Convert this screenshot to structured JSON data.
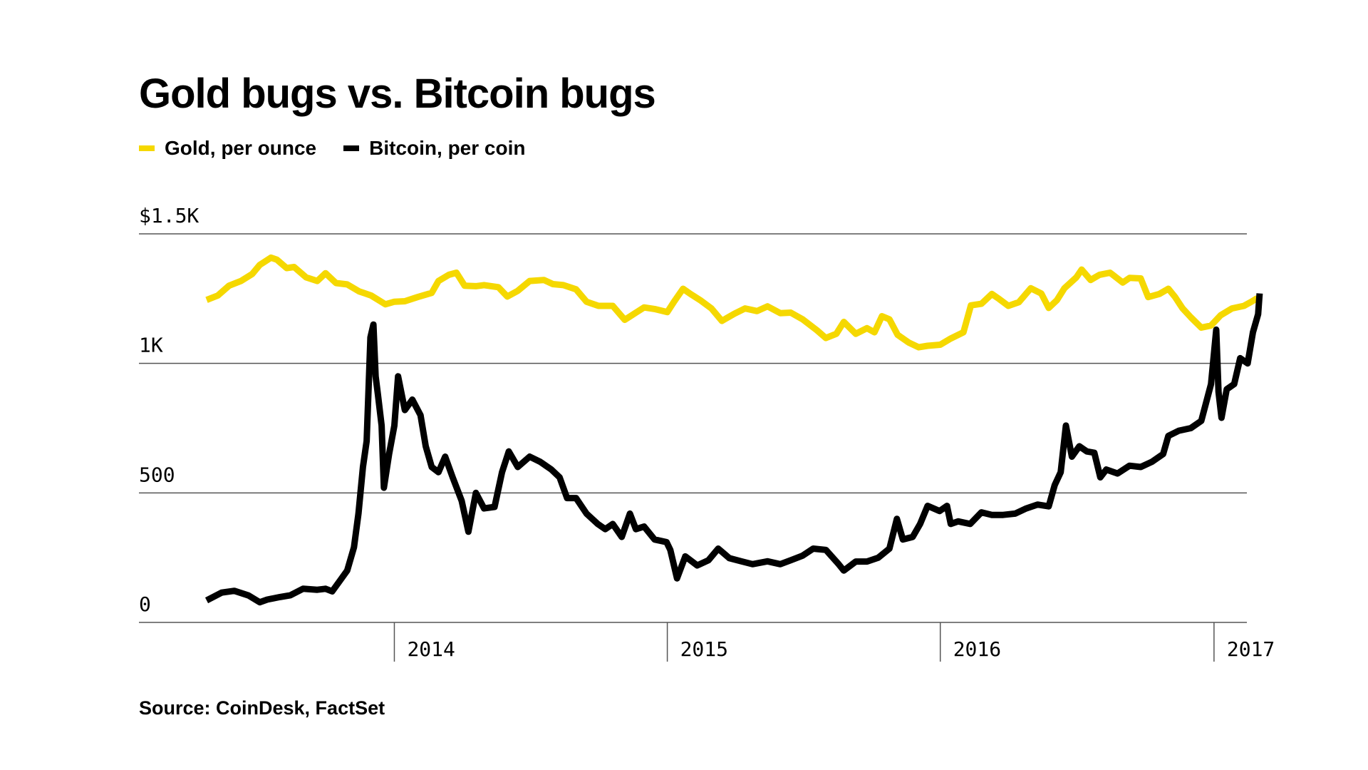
{
  "title": "Gold bugs vs. Bitcoin bugs",
  "legend": [
    {
      "label": "Gold, per ounce",
      "color": "#f5d800"
    },
    {
      "label": "Bitcoin, per coin",
      "color": "#000000"
    }
  ],
  "source": "Source: CoinDesk, FactSet",
  "chart_data": {
    "type": "line",
    "title": "Gold bugs vs. Bitcoin bugs",
    "xlabel": "",
    "ylabel": "",
    "ylim": [
      0,
      1500
    ],
    "xlim": [
      "2013-04-25",
      "2017-03-05"
    ],
    "y_ticks": [
      {
        "value": 0,
        "label": "0"
      },
      {
        "value": 500,
        "label": "500"
      },
      {
        "value": 1000,
        "label": "1K"
      },
      {
        "value": 1500,
        "label": "$1.5K"
      }
    ],
    "x_ticks": [
      {
        "value": "2014-01-01",
        "label": "2014"
      },
      {
        "value": "2015-01-01",
        "label": "2015"
      },
      {
        "value": "2016-01-01",
        "label": "2016"
      },
      {
        "value": "2017-01-01",
        "label": "2017"
      }
    ],
    "grid": true,
    "legend_position": "top-left",
    "series": [
      {
        "name": "Gold, per ounce",
        "color": "#f5d800",
        "points": [
          [
            "2013-04-25",
            1245
          ],
          [
            "2013-05-10",
            1262
          ],
          [
            "2013-05-25",
            1300
          ],
          [
            "2013-06-10",
            1318
          ],
          [
            "2013-06-25",
            1345
          ],
          [
            "2013-07-05",
            1380
          ],
          [
            "2013-07-20",
            1408
          ],
          [
            "2013-07-28",
            1400
          ],
          [
            "2013-08-10",
            1368
          ],
          [
            "2013-08-20",
            1372
          ],
          [
            "2013-09-05",
            1332
          ],
          [
            "2013-09-20",
            1318
          ],
          [
            "2013-10-01",
            1348
          ],
          [
            "2013-10-15",
            1310
          ],
          [
            "2013-10-30",
            1305
          ],
          [
            "2013-11-15",
            1278
          ],
          [
            "2013-12-01",
            1262
          ],
          [
            "2013-12-20",
            1228
          ],
          [
            "2014-01-01",
            1238
          ],
          [
            "2014-01-15",
            1240
          ],
          [
            "2014-02-01",
            1256
          ],
          [
            "2014-02-20",
            1272
          ],
          [
            "2014-03-01",
            1318
          ],
          [
            "2014-03-15",
            1342
          ],
          [
            "2014-03-25",
            1350
          ],
          [
            "2014-04-05",
            1300
          ],
          [
            "2014-04-20",
            1298
          ],
          [
            "2014-05-01",
            1302
          ],
          [
            "2014-05-20",
            1294
          ],
          [
            "2014-06-01",
            1258
          ],
          [
            "2014-06-15",
            1280
          ],
          [
            "2014-07-01",
            1318
          ],
          [
            "2014-07-20",
            1322
          ],
          [
            "2014-08-01",
            1306
          ],
          [
            "2014-08-15",
            1302
          ],
          [
            "2014-09-01",
            1286
          ],
          [
            "2014-09-15",
            1238
          ],
          [
            "2014-10-01",
            1222
          ],
          [
            "2014-10-20",
            1222
          ],
          [
            "2014-11-05",
            1168
          ],
          [
            "2014-11-20",
            1196
          ],
          [
            "2014-12-01",
            1216
          ],
          [
            "2014-12-15",
            1210
          ],
          [
            "2015-01-01",
            1198
          ],
          [
            "2015-01-10",
            1238
          ],
          [
            "2015-01-22",
            1288
          ],
          [
            "2015-02-01",
            1268
          ],
          [
            "2015-02-15",
            1242
          ],
          [
            "2015-03-01",
            1212
          ],
          [
            "2015-03-15",
            1164
          ],
          [
            "2015-04-01",
            1192
          ],
          [
            "2015-04-15",
            1212
          ],
          [
            "2015-05-01",
            1202
          ],
          [
            "2015-05-15",
            1220
          ],
          [
            "2015-06-01",
            1194
          ],
          [
            "2015-06-15",
            1196
          ],
          [
            "2015-07-01",
            1170
          ],
          [
            "2015-07-20",
            1128
          ],
          [
            "2015-08-01",
            1098
          ],
          [
            "2015-08-15",
            1114
          ],
          [
            "2015-08-25",
            1160
          ],
          [
            "2015-09-10",
            1114
          ],
          [
            "2015-09-25",
            1136
          ],
          [
            "2015-10-05",
            1120
          ],
          [
            "2015-10-15",
            1182
          ],
          [
            "2015-10-25",
            1170
          ],
          [
            "2015-11-05",
            1110
          ],
          [
            "2015-11-20",
            1080
          ],
          [
            "2015-12-03",
            1062
          ],
          [
            "2015-12-15",
            1068
          ],
          [
            "2016-01-01",
            1072
          ],
          [
            "2016-01-15",
            1096
          ],
          [
            "2016-02-01",
            1120
          ],
          [
            "2016-02-11",
            1224
          ],
          [
            "2016-02-25",
            1230
          ],
          [
            "2016-03-10",
            1268
          ],
          [
            "2016-03-20",
            1248
          ],
          [
            "2016-04-01",
            1222
          ],
          [
            "2016-04-15",
            1236
          ],
          [
            "2016-05-01",
            1290
          ],
          [
            "2016-05-15",
            1270
          ],
          [
            "2016-05-25",
            1214
          ],
          [
            "2016-06-05",
            1244
          ],
          [
            "2016-06-15",
            1290
          ],
          [
            "2016-07-01",
            1332
          ],
          [
            "2016-07-08",
            1362
          ],
          [
            "2016-07-20",
            1322
          ],
          [
            "2016-08-01",
            1342
          ],
          [
            "2016-08-15",
            1350
          ],
          [
            "2016-09-01",
            1312
          ],
          [
            "2016-09-10",
            1330
          ],
          [
            "2016-09-25",
            1328
          ],
          [
            "2016-10-05",
            1256
          ],
          [
            "2016-10-20",
            1268
          ],
          [
            "2016-11-01",
            1288
          ],
          [
            "2016-11-10",
            1256
          ],
          [
            "2016-11-20",
            1212
          ],
          [
            "2016-12-01",
            1178
          ],
          [
            "2016-12-15",
            1138
          ],
          [
            "2016-12-28",
            1146
          ],
          [
            "2017-01-10",
            1186
          ],
          [
            "2017-01-25",
            1212
          ],
          [
            "2017-02-10",
            1222
          ],
          [
            "2017-02-20",
            1238
          ],
          [
            "2017-02-28",
            1252
          ]
        ]
      },
      {
        "name": "Bitcoin, per coin",
        "color": "#000000",
        "points": [
          [
            "2013-04-25",
            85
          ],
          [
            "2013-05-15",
            115
          ],
          [
            "2013-06-01",
            122
          ],
          [
            "2013-06-20",
            104
          ],
          [
            "2013-07-05",
            78
          ],
          [
            "2013-07-15",
            88
          ],
          [
            "2013-08-01",
            98
          ],
          [
            "2013-08-15",
            105
          ],
          [
            "2013-09-01",
            130
          ],
          [
            "2013-09-20",
            126
          ],
          [
            "2013-10-01",
            130
          ],
          [
            "2013-10-10",
            120
          ],
          [
            "2013-10-20",
            160
          ],
          [
            "2013-10-30",
            200
          ],
          [
            "2013-11-08",
            290
          ],
          [
            "2013-11-14",
            420
          ],
          [
            "2013-11-20",
            600
          ],
          [
            "2013-11-25",
            700
          ],
          [
            "2013-11-30",
            1100
          ],
          [
            "2013-12-04",
            1150
          ],
          [
            "2013-12-07",
            950
          ],
          [
            "2013-12-10",
            880
          ],
          [
            "2013-12-15",
            760
          ],
          [
            "2013-12-18",
            520
          ],
          [
            "2013-12-25",
            650
          ],
          [
            "2014-01-01",
            760
          ],
          [
            "2014-01-06",
            950
          ],
          [
            "2014-01-15",
            820
          ],
          [
            "2014-01-25",
            860
          ],
          [
            "2014-02-05",
            800
          ],
          [
            "2014-02-12",
            680
          ],
          [
            "2014-02-20",
            600
          ],
          [
            "2014-03-01",
            580
          ],
          [
            "2014-03-10",
            640
          ],
          [
            "2014-03-20",
            560
          ],
          [
            "2014-04-01",
            470
          ],
          [
            "2014-04-10",
            350
          ],
          [
            "2014-04-20",
            500
          ],
          [
            "2014-05-01",
            440
          ],
          [
            "2014-05-15",
            446
          ],
          [
            "2014-05-25",
            580
          ],
          [
            "2014-06-03",
            660
          ],
          [
            "2014-06-15",
            600
          ],
          [
            "2014-07-01",
            640
          ],
          [
            "2014-07-15",
            620
          ],
          [
            "2014-07-30",
            590
          ],
          [
            "2014-08-10",
            560
          ],
          [
            "2014-08-20",
            480
          ],
          [
            "2014-09-01",
            480
          ],
          [
            "2014-09-15",
            420
          ],
          [
            "2014-09-30",
            380
          ],
          [
            "2014-10-10",
            360
          ],
          [
            "2014-10-20",
            380
          ],
          [
            "2014-11-01",
            330
          ],
          [
            "2014-11-12",
            420
          ],
          [
            "2014-11-20",
            360
          ],
          [
            "2014-12-01",
            370
          ],
          [
            "2014-12-15",
            320
          ],
          [
            "2014-12-31",
            310
          ],
          [
            "2015-01-05",
            280
          ],
          [
            "2015-01-14",
            170
          ],
          [
            "2015-01-25",
            255
          ],
          [
            "2015-02-10",
            220
          ],
          [
            "2015-02-25",
            240
          ],
          [
            "2015-03-10",
            285
          ],
          [
            "2015-03-25",
            248
          ],
          [
            "2015-04-10",
            236
          ],
          [
            "2015-04-25",
            225
          ],
          [
            "2015-05-15",
            236
          ],
          [
            "2015-06-01",
            225
          ],
          [
            "2015-06-15",
            240
          ],
          [
            "2015-07-01",
            258
          ],
          [
            "2015-07-15",
            285
          ],
          [
            "2015-08-01",
            280
          ],
          [
            "2015-08-18",
            225
          ],
          [
            "2015-08-25",
            200
          ],
          [
            "2015-09-10",
            235
          ],
          [
            "2015-09-25",
            235
          ],
          [
            "2015-10-10",
            250
          ],
          [
            "2015-10-25",
            285
          ],
          [
            "2015-11-04",
            400
          ],
          [
            "2015-11-12",
            320
          ],
          [
            "2015-11-25",
            330
          ],
          [
            "2015-12-05",
            380
          ],
          [
            "2015-12-15",
            450
          ],
          [
            "2015-12-31",
            430
          ],
          [
            "2016-01-10",
            450
          ],
          [
            "2016-01-15",
            380
          ],
          [
            "2016-01-25",
            390
          ],
          [
            "2016-02-10",
            380
          ],
          [
            "2016-02-25",
            425
          ],
          [
            "2016-03-10",
            415
          ],
          [
            "2016-03-25",
            415
          ],
          [
            "2016-04-10",
            420
          ],
          [
            "2016-04-25",
            440
          ],
          [
            "2016-05-10",
            455
          ],
          [
            "2016-05-25",
            448
          ],
          [
            "2016-06-02",
            530
          ],
          [
            "2016-06-10",
            580
          ],
          [
            "2016-06-17",
            760
          ],
          [
            "2016-06-25",
            640
          ],
          [
            "2016-07-05",
            680
          ],
          [
            "2016-07-15",
            660
          ],
          [
            "2016-07-25",
            655
          ],
          [
            "2016-08-02",
            560
          ],
          [
            "2016-08-10",
            590
          ],
          [
            "2016-08-25",
            575
          ],
          [
            "2016-09-10",
            605
          ],
          [
            "2016-09-25",
            600
          ],
          [
            "2016-10-10",
            620
          ],
          [
            "2016-10-25",
            650
          ],
          [
            "2016-11-01",
            720
          ],
          [
            "2016-11-15",
            740
          ],
          [
            "2016-12-01",
            750
          ],
          [
            "2016-12-15",
            778
          ],
          [
            "2016-12-28",
            920
          ],
          [
            "2017-01-04",
            1130
          ],
          [
            "2017-01-07",
            890
          ],
          [
            "2017-01-11",
            790
          ],
          [
            "2017-01-18",
            900
          ],
          [
            "2017-01-28",
            920
          ],
          [
            "2017-02-05",
            1020
          ],
          [
            "2017-02-15",
            1000
          ],
          [
            "2017-02-22",
            1120
          ],
          [
            "2017-03-01",
            1190
          ],
          [
            "2017-03-03",
            1270
          ]
        ]
      }
    ]
  }
}
